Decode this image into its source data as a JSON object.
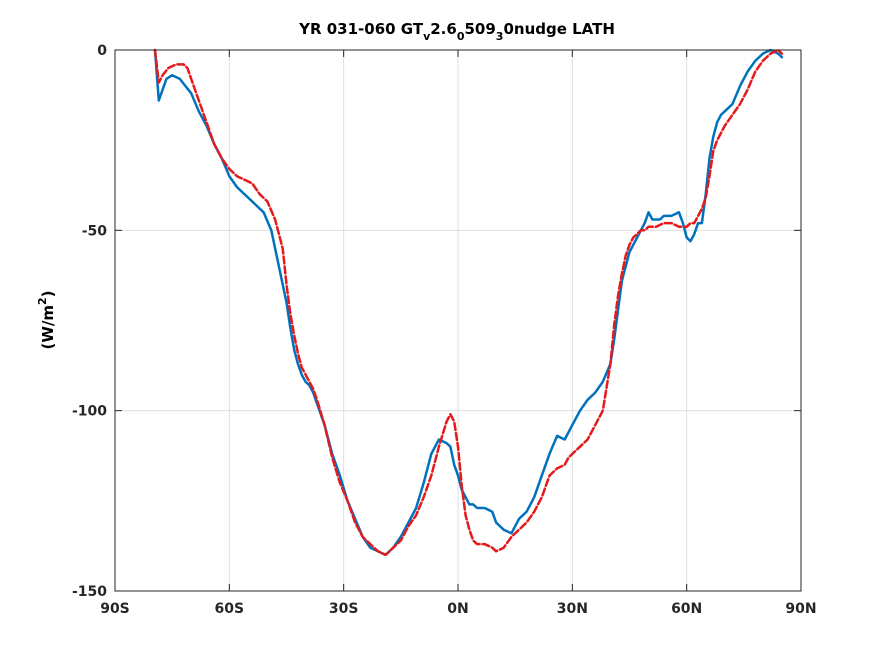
{
  "chart_data": {
    "type": "line",
    "title": "YR 031-060 GT",
    "title_parts": {
      "t1": "YR 031-060 GT",
      "s1": "v",
      "t2": "2.6",
      "s2": "0",
      "t3": "509",
      "s3": "3",
      "t4": "0nudge LATH"
    },
    "xlabel": "",
    "ylabel": "(W/m",
    "ylabel_sup": "2",
    "ylabel_close": ")",
    "xlim": [
      -90,
      90
    ],
    "ylim": [
      -150,
      0
    ],
    "x_ticks": [
      {
        "value": -90,
        "label": "90S"
      },
      {
        "value": -60,
        "label": "60S"
      },
      {
        "value": -30,
        "label": "30S"
      },
      {
        "value": 0,
        "label": "0N"
      },
      {
        "value": 30,
        "label": "30N"
      },
      {
        "value": 60,
        "label": "60N"
      },
      {
        "value": 90,
        "label": "90N"
      }
    ],
    "y_ticks": [
      {
        "value": 0,
        "label": "0"
      },
      {
        "value": -50,
        "label": "-50"
      },
      {
        "value": -100,
        "label": "-100"
      },
      {
        "value": -150,
        "label": "-150"
      }
    ],
    "grid": true,
    "series": [
      {
        "color": "#0072BD",
        "style": "solid",
        "x": [
          -79.5,
          -78.5,
          -77.5,
          -76.5,
          -75,
          -73,
          -71.5,
          -70,
          -68,
          -66,
          -64,
          -62,
          -60,
          -58,
          -56,
          -55,
          -53,
          -51,
          -49,
          -47,
          -45,
          -44,
          -43,
          -42,
          -41,
          -40,
          -39,
          -38,
          -37,
          -35,
          -33,
          -31,
          -29,
          -27,
          -25,
          -23,
          -21,
          -19,
          -17,
          -15,
          -13,
          -11,
          -9,
          -7,
          -5,
          -3,
          -2,
          -1,
          0,
          1,
          2,
          3,
          4,
          5,
          7,
          9,
          10,
          12,
          14,
          16,
          18,
          20,
          22,
          24,
          26,
          28,
          29,
          30,
          32,
          34,
          36,
          38,
          40,
          41,
          42,
          43,
          44,
          45,
          46,
          47,
          48,
          49,
          50,
          51,
          52,
          53,
          54,
          56,
          58,
          59,
          60,
          61,
          62,
          63,
          64,
          65,
          66,
          67,
          68,
          69,
          70,
          72,
          74,
          76,
          78,
          80,
          82,
          84,
          85
        ],
        "y": [
          0,
          -14,
          -11,
          -8,
          -7,
          -8,
          -10,
          -12,
          -17,
          -21,
          -26,
          -30,
          -35,
          -38,
          -40,
          -41,
          -43,
          -45,
          -50,
          -60,
          -70,
          -77,
          -83,
          -87,
          -90,
          -92,
          -93,
          -95,
          -98,
          -104,
          -112,
          -118,
          -125,
          -130,
          -135,
          -138,
          -139,
          -140,
          -138,
          -135,
          -131,
          -127,
          -120,
          -112,
          -108,
          -109,
          -110,
          -115,
          -118,
          -122,
          -124,
          -126,
          -126,
          -127,
          -127,
          -128,
          -131,
          -133,
          -134,
          -130,
          -128,
          -124,
          -118,
          -112,
          -107,
          -108,
          -106,
          -104,
          -100,
          -97,
          -95,
          -92,
          -87,
          -80,
          -72,
          -64,
          -60,
          -56,
          -54,
          -52,
          -50,
          -48,
          -45,
          -47,
          -47,
          -47,
          -46,
          -46,
          -45,
          -48,
          -52,
          -53,
          -51,
          -48,
          -48,
          -40,
          -30,
          -24,
          -20,
          -18,
          -17,
          -15,
          -10,
          -6,
          -3,
          -1,
          0,
          -1,
          -2
        ]
      },
      {
        "color": "#E41A1C",
        "style": "dashed",
        "x": [
          -79.5,
          -78.5,
          -77.5,
          -76,
          -74,
          -72,
          -71,
          -70,
          -68,
          -66,
          -64,
          -62,
          -60,
          -58,
          -56,
          -54,
          -52,
          -50,
          -48,
          -46,
          -45,
          -44,
          -43,
          -42,
          -41,
          -40,
          -39,
          -38,
          -37,
          -35,
          -33,
          -31,
          -29,
          -27,
          -25,
          -23,
          -21,
          -19,
          -17,
          -15,
          -13,
          -11,
          -9,
          -7,
          -5,
          -3,
          -2,
          -1,
          0,
          1,
          2,
          3,
          4,
          5,
          7,
          9,
          10,
          12,
          14,
          16,
          18,
          20,
          22,
          24,
          26,
          28,
          29,
          30,
          32,
          34,
          36,
          38,
          40,
          41,
          42,
          43,
          44,
          45,
          46,
          47,
          48,
          49,
          50,
          52,
          54,
          56,
          58,
          59,
          60,
          61,
          62,
          63,
          64,
          65,
          66,
          67,
          68,
          69,
          70,
          72,
          74,
          76,
          78,
          80,
          82,
          84,
          85
        ],
        "y": [
          0,
          -9,
          -7,
          -5,
          -4,
          -4,
          -5,
          -8,
          -14,
          -20,
          -26,
          -30,
          -33,
          -35,
          -36,
          -37,
          -40,
          -42,
          -47,
          -55,
          -65,
          -73,
          -79,
          -84,
          -88,
          -90,
          -92,
          -94,
          -97,
          -104,
          -113,
          -120,
          -125,
          -131,
          -135,
          -137,
          -139,
          -140,
          -138,
          -136,
          -132,
          -129,
          -124,
          -118,
          -110,
          -103,
          -101,
          -103,
          -110,
          -121,
          -129,
          -133,
          -136,
          -137,
          -137,
          -138,
          -139,
          -138,
          -135,
          -133,
          -131,
          -128,
          -124,
          -118,
          -116,
          -115,
          -113,
          -112,
          -110,
          -108,
          -104,
          -100,
          -87,
          -76,
          -68,
          -62,
          -57,
          -54,
          -52,
          -51,
          -50,
          -50,
          -49,
          -49,
          -48,
          -48,
          -49,
          -49,
          -49,
          -48,
          -48,
          -46,
          -44,
          -41,
          -35,
          -28,
          -25,
          -23,
          -21,
          -18,
          -15,
          -11,
          -6,
          -3,
          -1,
          0,
          -1
        ]
      }
    ]
  }
}
